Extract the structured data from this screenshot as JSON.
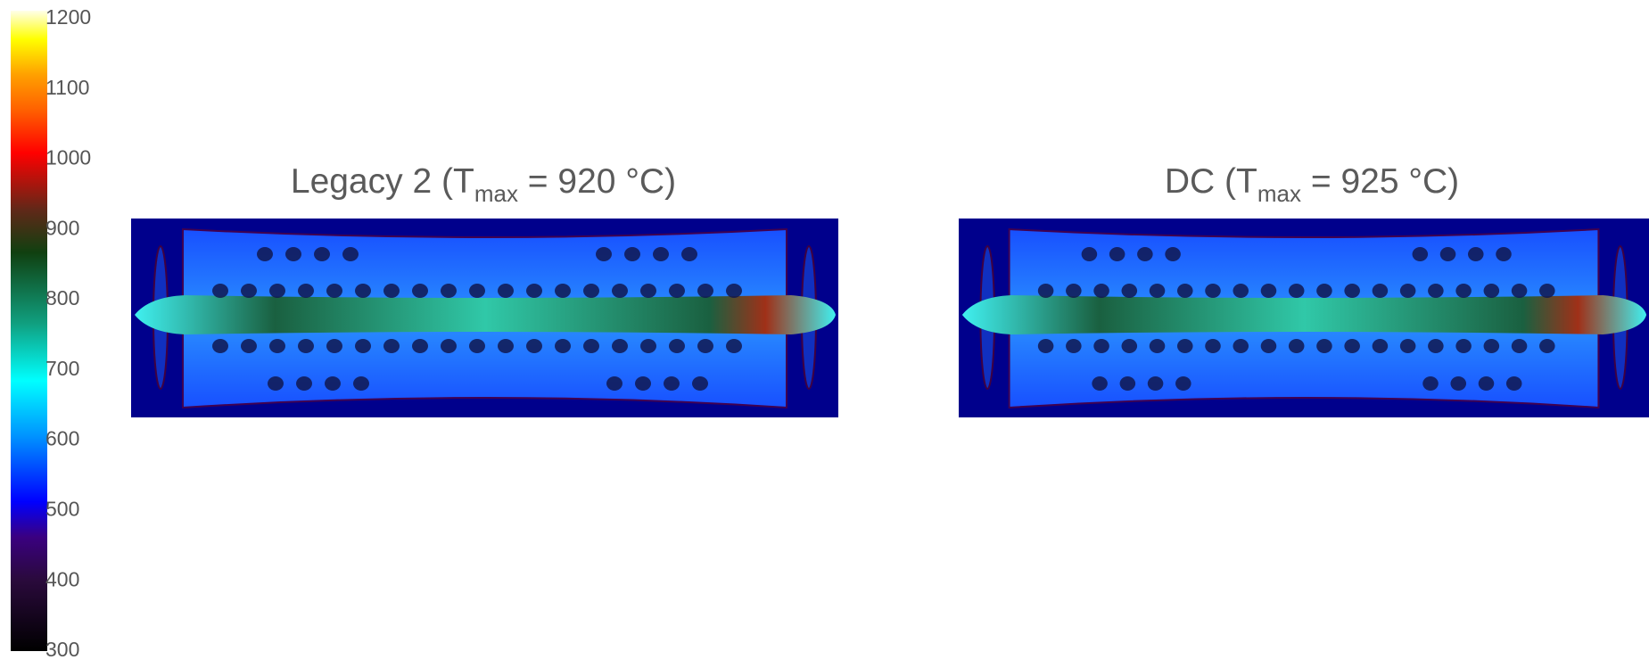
{
  "colorbar": {
    "ticks": [
      300,
      400,
      500,
      600,
      700,
      800,
      900,
      1000,
      1100,
      1200
    ],
    "colormap": [
      {
        "value": 300,
        "color": "#000000"
      },
      {
        "value": 400,
        "color": "#2a0a3c"
      },
      {
        "value": 460,
        "color": "#3a0080"
      },
      {
        "value": 510,
        "color": "#0000ff"
      },
      {
        "value": 600,
        "color": "#0090ff"
      },
      {
        "value": 680,
        "color": "#00ffff"
      },
      {
        "value": 760,
        "color": "#10a080"
      },
      {
        "value": 860,
        "color": "#104010"
      },
      {
        "value": 920,
        "color": "#602818"
      },
      {
        "value": 1000,
        "color": "#ff0000"
      },
      {
        "value": 1060,
        "color": "#ff6000"
      },
      {
        "value": 1110,
        "color": "#ffa000"
      },
      {
        "value": 1160,
        "color": "#ffff00"
      },
      {
        "value": 1200,
        "color": "#ffffe8"
      }
    ]
  },
  "panels": [
    {
      "title": "Legacy 2  (T",
      "subscript": "max",
      "title_end": " = 920 °C)"
    },
    {
      "title": "DC  (T",
      "subscript": "max",
      "title_end": " = 925 °C)"
    }
  ]
}
